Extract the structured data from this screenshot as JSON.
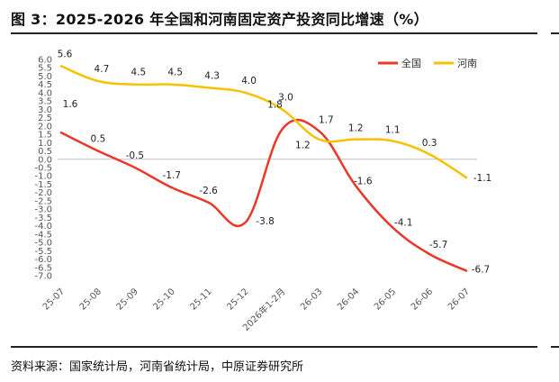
{
  "title": "图 3：2025-2026 年全国和河南固定资产投资同比增速（%）",
  "source": "资料来源：国家统计局，河南省统计局，中原证券研究所",
  "chart_data": {
    "type": "line",
    "title": "图 3：2025-2026 年全国和河南固定资产投资同比增速（%）",
    "categories": [
      "25-07",
      "25-08",
      "25-09",
      "25-10",
      "25-11",
      "25-12",
      "2026年1-2月",
      "26-03",
      "26-04",
      "26-05",
      "26-06",
      "26-07"
    ],
    "series": [
      {
        "name": "全国",
        "color": "#e8392a",
        "values": [
          1.6,
          0.5,
          -0.5,
          -1.7,
          -2.6,
          -3.8,
          1.8,
          1.7,
          -1.6,
          -4.1,
          -5.7,
          -6.7
        ]
      },
      {
        "name": "河南",
        "color": "#f5c200",
        "values": [
          5.6,
          4.7,
          4.5,
          4.5,
          4.3,
          4.0,
          3.0,
          1.2,
          1.2,
          1.1,
          0.3,
          -1.1
        ]
      }
    ],
    "yticks": [
      "6.0",
      "5.5",
      "5.0",
      "4.5",
      "4.0",
      "3.5",
      "3.0",
      "2.5",
      "2.0",
      "1.5",
      "1.0",
      "0.5",
      "0.0",
      "-0.5",
      "-1.0",
      "-1.5",
      "-2.0",
      "-2.5",
      "-3.0",
      "-3.5",
      "-4.0",
      "-4.5",
      "-5.0",
      "-5.5",
      "-6.0",
      "-6.5",
      "-7.0"
    ],
    "ylim": [
      -7.0,
      6.0
    ],
    "grid": false,
    "legend": "top-right"
  }
}
